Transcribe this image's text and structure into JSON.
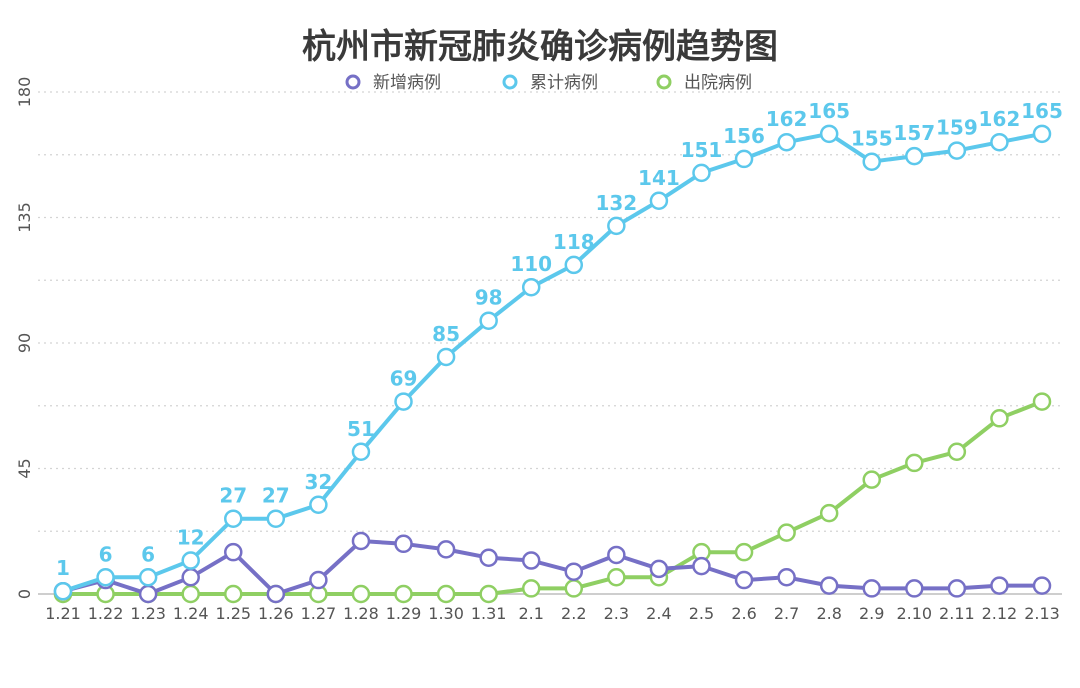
{
  "colors": {
    "new": "#7670c6",
    "cumulative": "#5cc8ec",
    "discharged": "#8fcf63"
  },
  "chart_data": {
    "type": "line",
    "title": "杭州市新冠肺炎确诊病例趋势图",
    "xlabel": "",
    "ylabel": "",
    "ylim": [
      0,
      180
    ],
    "yticks": [
      0,
      45,
      90,
      135,
      180
    ],
    "grid": true,
    "legend": "top-center",
    "categories": [
      "1.21",
      "1.22",
      "1.23",
      "1.24",
      "1.25",
      "1.26",
      "1.27",
      "1.28",
      "1.29",
      "1.30",
      "1.31",
      "2.1",
      "2.2",
      "2.3",
      "2.4",
      "2.5",
      "2.6",
      "2.7",
      "2.8",
      "2.9",
      "2.10",
      "2.11",
      "2.12",
      "2.13"
    ],
    "series": [
      {
        "name": "新增病例",
        "color_key": "new",
        "values": [
          1,
          5,
          0,
          6,
          15,
          0,
          5,
          19,
          18,
          16,
          13,
          12,
          8,
          14,
          9,
          10,
          5,
          6,
          3,
          2,
          2,
          2,
          3,
          3
        ],
        "show_labels": false
      },
      {
        "name": "累计病例",
        "color_key": "cumulative",
        "values": [
          1,
          6,
          6,
          12,
          27,
          27,
          32,
          51,
          69,
          85,
          98,
          110,
          118,
          132,
          141,
          151,
          156,
          162,
          165,
          155,
          157,
          159,
          162,
          165
        ],
        "show_labels": true
      },
      {
        "name": "出院病例",
        "color_key": "discharged",
        "values": [
          0,
          0,
          0,
          0,
          0,
          0,
          0,
          0,
          0,
          0,
          0,
          2,
          2,
          6,
          6,
          15,
          15,
          22,
          29,
          41,
          47,
          51,
          63,
          69
        ],
        "show_labels": false
      }
    ]
  }
}
